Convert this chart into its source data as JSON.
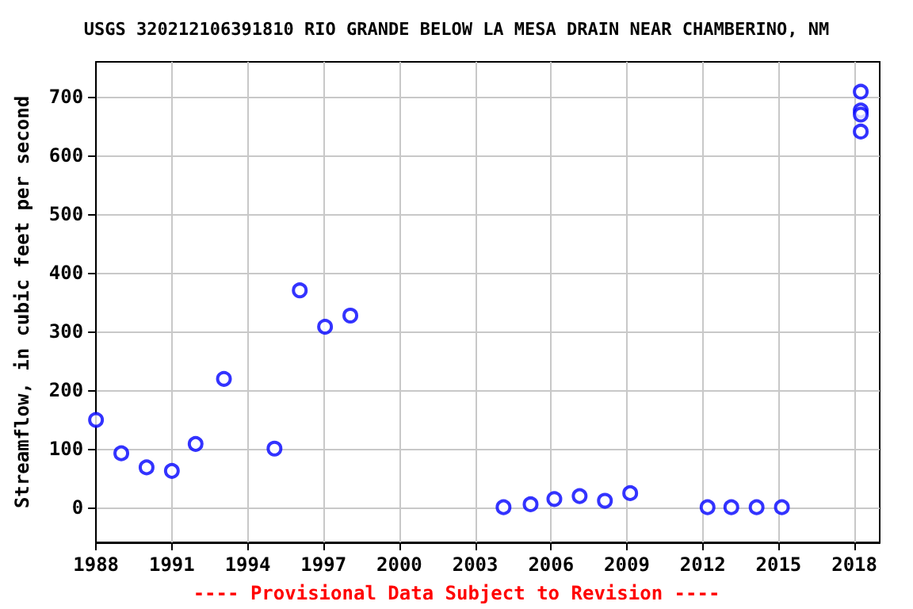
{
  "chart_data": {
    "type": "scatter",
    "title": "USGS 320212106391810 RIO GRANDE BELOW LA MESA DRAIN NEAR CHAMBERINO, NM",
    "ylabel": "Streamflow, in cubic feet per second",
    "annotations": [
      "---- Provisional Data Subject to Revision ----"
    ],
    "x": [
      1988.0,
      1989.0,
      1990.0,
      1991.0,
      1991.94,
      1993.06,
      1995.06,
      1996.06,
      1997.06,
      1998.06,
      2004.12,
      2005.19,
      2006.13,
      2007.13,
      2008.13,
      2009.13,
      2012.19,
      2013.13,
      2014.13,
      2015.13,
      2018.25,
      2018.25,
      2018.25,
      2018.25
    ],
    "series": [
      {
        "color": "#0000ff",
        "values": [
          149,
          92,
          68,
          62,
          108,
          219,
          100,
          370,
          308,
          327,
          0,
          5,
          14,
          19,
          11,
          24,
          0,
          0,
          0,
          0,
          709,
          677,
          670,
          641
        ]
      }
    ],
    "xlim": [
      1988,
      2019
    ],
    "xticks": [
      1988,
      1991,
      1994,
      1997,
      2000,
      2003,
      2006,
      2009,
      2012,
      2015,
      2018
    ],
    "ylim": [
      -60,
      760
    ],
    "yticks": [
      0,
      100,
      200,
      300,
      400,
      500,
      600,
      700
    ],
    "grid": true,
    "marker": "circle"
  }
}
